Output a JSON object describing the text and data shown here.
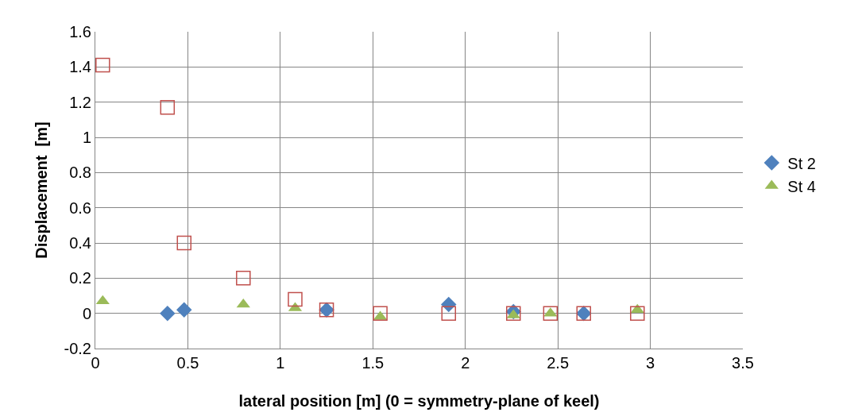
{
  "chart_data": {
    "type": "scatter",
    "xlabel": "lateral position [m] (0 = symmetry-plane of keel)",
    "ylabel": "Displacement  [m]",
    "xlim": [
      0,
      3.5
    ],
    "xticks": [
      0,
      0.5,
      1,
      1.5,
      2,
      2.5,
      3,
      3.5
    ],
    "ylim": [
      -0.2,
      1.6
    ],
    "yticks": [
      -0.2,
      0,
      0.2,
      0.4,
      0.6,
      0.8,
      1,
      1.2,
      1.4,
      1.6
    ],
    "grid": true,
    "legend": "right",
    "series": [
      {
        "name": "St 2",
        "color": "#4f81bd",
        "marker": "diamond",
        "x": [
          0.39,
          0.48,
          1.25,
          1.91,
          2.26,
          2.64
        ],
        "values": [
          0.0,
          0.02,
          0.02,
          0.05,
          0.01,
          0.0
        ]
      },
      {
        "name": "St 4",
        "color": "#9bbb59",
        "marker": "triangle",
        "x": [
          0.04,
          0.8,
          1.08,
          1.54,
          2.26,
          2.46,
          2.93
        ],
        "values": [
          0.07,
          0.05,
          0.03,
          -0.02,
          -0.01,
          0.0,
          0.02
        ]
      },
      {
        "color": "#c0504d",
        "marker": "square",
        "x": [
          0.04,
          0.39,
          0.48,
          0.8,
          1.08,
          1.25,
          1.54,
          1.91,
          2.26,
          2.46,
          2.64,
          2.93
        ],
        "values": [
          1.41,
          1.17,
          0.4,
          0.2,
          0.08,
          0.02,
          0.0,
          0.0,
          0.0,
          0.0,
          0.0,
          0.0
        ]
      }
    ]
  }
}
